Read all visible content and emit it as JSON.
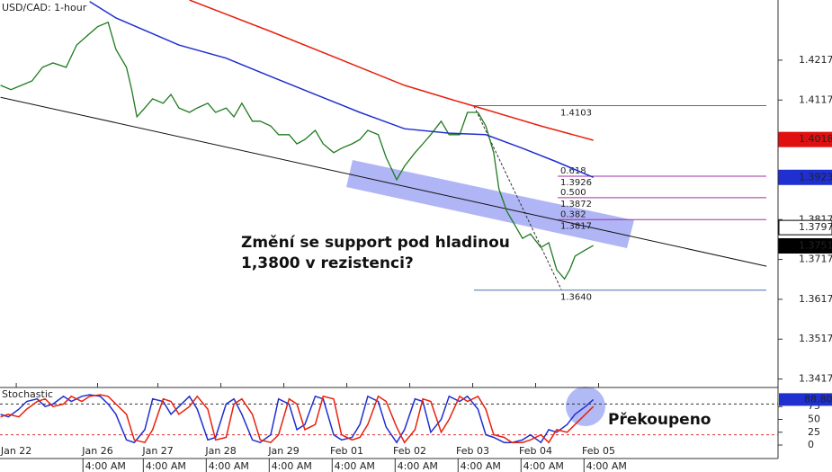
{
  "chart_data": [
    {
      "type": "line",
      "title": "USD/CAD: 1-hour",
      "x": [
        -6,
        -2,
        2,
        6,
        10,
        14,
        19,
        23,
        27,
        31,
        35,
        38,
        42,
        44,
        46,
        49,
        52,
        56,
        59,
        62,
        66,
        69,
        73,
        76,
        80,
        83,
        86,
        90,
        93,
        97,
        100,
        104,
        107,
        110,
        114,
        117,
        121,
        124,
        128,
        131,
        134,
        138,
        141,
        145,
        148,
        152,
        155,
        158,
        162,
        165,
        169,
        172,
        176,
        179,
        182,
        184,
        187,
        190,
        193,
        196,
        200,
        203,
        206,
        209,
        211,
        213,
        217,
        220
      ],
      "series": [
        {
          "color": "#1e7a1e",
          "values": [
            1.4154,
            1.4143,
            1.4154,
            1.4165,
            1.4199,
            1.421,
            1.4199,
            1.4255,
            1.4278,
            1.4301,
            1.4312,
            1.4244,
            1.4199,
            1.4143,
            1.4075,
            1.4097,
            1.412,
            1.4109,
            1.4131,
            1.4097,
            1.4086,
            1.4097,
            1.4109,
            1.4086,
            1.4097,
            1.4075,
            1.4109,
            1.4064,
            1.4064,
            1.4052,
            1.403,
            1.403,
            1.4007,
            1.4018,
            1.4041,
            1.4007,
            1.3985,
            1.3996,
            1.4007,
            1.4018,
            1.4041,
            1.403,
            1.3973,
            1.3917,
            1.3951,
            1.3985,
            1.4007,
            1.403,
            1.4064,
            1.403,
            1.403,
            1.4086,
            1.4086,
            1.4052,
            1.3985,
            1.3894,
            1.3838,
            1.3804,
            1.377,
            1.3781,
            1.3747,
            1.3759,
            1.3691,
            1.3668,
            1.3691,
            1.3725,
            1.3741,
            1.3752
          ]
        },
        {
          "color": "#1f2fd0",
          "x": [
            28,
            38,
            62,
            80,
            97,
            114,
            131,
            148,
            165,
            179,
            193,
            206,
            220
          ],
          "values": [
            1.4364,
            1.4323,
            1.4255,
            1.4222,
            1.4176,
            1.4131,
            1.4086,
            1.4045,
            1.4034,
            1.403,
            1.3996,
            1.3962,
            1.3923
          ]
        },
        {
          "color": "#e8200c",
          "x": [
            66,
            97,
            131,
            148,
            165,
            179,
            200,
            220
          ],
          "values": [
            1.4368,
            1.4289,
            1.4199,
            1.4154,
            1.412,
            1.4093,
            1.4052,
            1.4016
          ]
        }
      ],
      "trendline": {
        "x": [
          -6,
          286
        ],
        "values": [
          1.4124,
          1.37
        ]
      },
      "fibonacci": {
        "high": 1.4103,
        "low": {
          "value": 1.364,
          "label": "1.3640"
        },
        "levels": [
          {
            "ratio": "0.618",
            "value": 1.3926
          },
          {
            "ratio": "0.500",
            "value": 1.3872
          },
          {
            "ratio": "0.382",
            "value": 1.3817
          }
        ]
      },
      "price_labels": [
        {
          "value": 1.4018,
          "color": "#e01010"
        },
        {
          "value": 1.3923,
          "color": "#1f2fd0"
        },
        {
          "value": 1.3797,
          "color": "#ffffff"
        },
        {
          "value": 1.3751,
          "color": "#000000"
        }
      ],
      "annotation": [
        "Změní se support pod hladinou",
        "1,3800 v rezistenci?"
      ],
      "xlim": [
        -6.2,
        290.4
      ],
      "ylim": [
        1.3398,
        1.4368
      ],
      "yticks": [
        1.4217,
        1.4117,
        1.3817,
        1.3717,
        1.3617,
        1.3517,
        1.3417
      ],
      "xticks": [
        {
          "value": 0,
          "label": "Jan 22"
        },
        {
          "value": 31,
          "label": "Jan 26"
        },
        {
          "value": 54,
          "label": "Jan 27"
        },
        {
          "value": 78,
          "label": "Jan 28"
        },
        {
          "value": 102,
          "label": "Jan 29"
        },
        {
          "value": 126,
          "label": "Feb 01"
        },
        {
          "value": 150,
          "label": "Feb 02"
        },
        {
          "value": 174,
          "label": "Feb 03"
        },
        {
          "value": 198,
          "label": "Feb 04"
        },
        {
          "value": 222,
          "label": "Feb 05"
        }
      ],
      "time_ticks": [
        {
          "value": 34,
          "label": "4:00 AM"
        },
        {
          "value": 57,
          "label": "4:00 AM"
        },
        {
          "value": 81,
          "label": "4:00 AM"
        },
        {
          "value": 105,
          "label": "4:00 AM"
        },
        {
          "value": 129,
          "label": "4:00 AM"
        },
        {
          "value": 153,
          "label": "4:00 AM"
        },
        {
          "value": 177,
          "label": "4:00 AM"
        },
        {
          "value": 201,
          "label": "4:00 AM"
        },
        {
          "value": 225,
          "label": "4:00 AM"
        }
      ]
    },
    {
      "type": "line",
      "title": "Stochastic",
      "x": [
        -6,
        -3,
        1,
        4,
        8,
        11,
        14,
        18,
        21,
        25,
        28,
        32,
        35,
        38,
        42,
        45,
        49,
        52,
        56,
        59,
        62,
        66,
        69,
        73,
        76,
        80,
        83,
        86,
        90,
        93,
        97,
        100,
        104,
        107,
        110,
        114,
        117,
        121,
        124,
        128,
        131,
        134,
        138,
        141,
        145,
        148,
        152,
        155,
        158,
        162,
        165,
        169,
        172,
        176,
        179,
        182,
        186,
        189,
        193,
        196,
        200,
        203,
        206,
        210,
        213,
        217,
        220
      ],
      "series": [
        {
          "color": "#1f2fd0",
          "values": [
            60,
            55,
            70,
            85,
            90,
            75,
            80,
            95,
            85,
            95,
            98,
            95,
            80,
            60,
            10,
            5,
            30,
            90,
            85,
            60,
            75,
            95,
            70,
            10,
            15,
            80,
            90,
            60,
            10,
            5,
            20,
            90,
            80,
            30,
            40,
            95,
            90,
            20,
            10,
            15,
            40,
            95,
            85,
            35,
            5,
            30,
            90,
            85,
            25,
            50,
            95,
            85,
            95,
            70,
            20,
            15,
            5,
            5,
            10,
            20,
            5,
            30,
            25,
            40,
            60,
            75,
            88.8
          ]
        },
        {
          "color": "#e8200c",
          "values": [
            55,
            60,
            55,
            70,
            85,
            90,
            75,
            80,
            95,
            85,
            95,
            98,
            95,
            80,
            60,
            10,
            5,
            30,
            90,
            85,
            60,
            75,
            95,
            70,
            10,
            15,
            80,
            90,
            60,
            10,
            5,
            20,
            90,
            80,
            30,
            40,
            95,
            90,
            20,
            10,
            15,
            40,
            95,
            85,
            35,
            5,
            30,
            90,
            85,
            25,
            50,
            95,
            85,
            95,
            70,
            20,
            15,
            5,
            5,
            10,
            20,
            5,
            30,
            25,
            40,
            60,
            75
          ]
        }
      ],
      "levels": [
        80,
        20
      ],
      "last": {
        "value": 88.8,
        "label": "88.80"
      },
      "annotation": "Překoupeno",
      "ylim": [
        -17.5,
        110.5
      ],
      "yticks": [
        75,
        50,
        25,
        0
      ]
    }
  ]
}
